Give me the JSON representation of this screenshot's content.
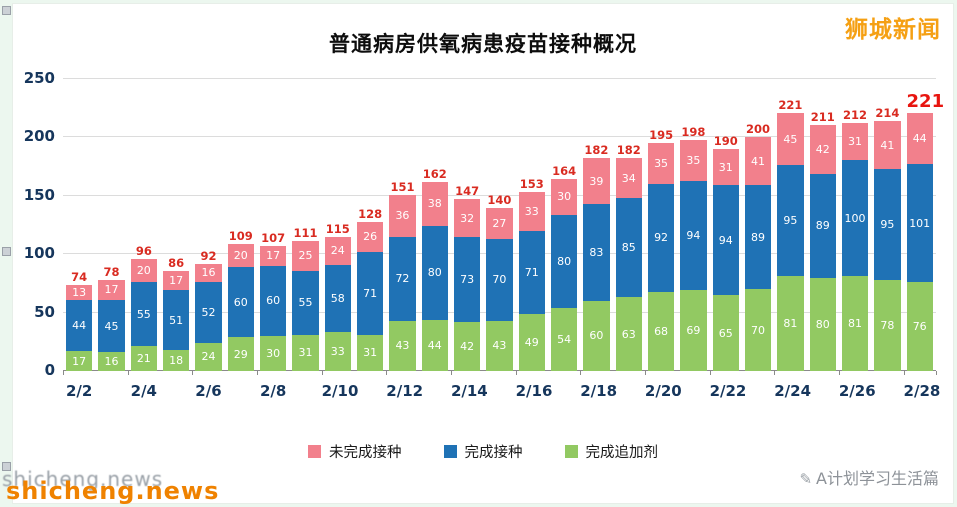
{
  "page": {
    "watermark_top_right": "狮城新闻",
    "watermark_bottom_right": "A计划学习生活篇",
    "watermark_bottom_left": "shicheng.news"
  },
  "chart_data": {
    "type": "bar",
    "stacked": true,
    "title": "普通病房供氧病患疫苗接种概况",
    "categories": [
      "2/2",
      "2/3",
      "2/4",
      "2/5",
      "2/6",
      "2/7",
      "2/8",
      "2/9",
      "2/10",
      "2/11",
      "2/12",
      "2/13",
      "2/14",
      "2/15",
      "2/16",
      "2/17",
      "2/18",
      "2/19",
      "2/20",
      "2/21",
      "2/22",
      "2/23",
      "2/24",
      "2/25",
      "2/26",
      "2/27",
      "2/28"
    ],
    "x_tick_labels": [
      "2/2",
      "2/4",
      "2/6",
      "2/8",
      "2/10",
      "2/12",
      "2/14",
      "2/16",
      "2/18",
      "2/20",
      "2/22",
      "2/24",
      "2/26",
      "2/28"
    ],
    "series": [
      {
        "name": "完成追加剂",
        "color": "#92c962",
        "values": [
          17,
          16,
          21,
          18,
          24,
          29,
          30,
          31,
          33,
          31,
          43,
          44,
          42,
          43,
          49,
          54,
          60,
          63,
          68,
          69,
          65,
          70,
          81,
          80,
          81,
          78,
          76
        ]
      },
      {
        "name": "完成接种",
        "color": "#1f72b5",
        "values": [
          44,
          45,
          55,
          51,
          52,
          60,
          60,
          55,
          58,
          71,
          72,
          80,
          73,
          70,
          71,
          80,
          83,
          85,
          92,
          94,
          94,
          89,
          95,
          89,
          100,
          95,
          101
        ]
      },
      {
        "name": "未完成接种",
        "color": "#f2808c",
        "values": [
          13,
          17,
          20,
          17,
          16,
          20,
          17,
          25,
          24,
          26,
          36,
          38,
          32,
          27,
          33,
          30,
          39,
          34,
          35,
          35,
          31,
          41,
          45,
          42,
          31,
          41,
          44
        ]
      }
    ],
    "totals": [
      74,
      78,
      96,
      86,
      92,
      109,
      107,
      111,
      115,
      128,
      151,
      162,
      147,
      140,
      153,
      164,
      182,
      182,
      195,
      198,
      190,
      200,
      221,
      211,
      212,
      214,
      221
    ],
    "ylim": [
      0,
      250
    ],
    "y_ticks": [
      0,
      50,
      100,
      150,
      200,
      250
    ],
    "grid": true,
    "legend_position": "bottom",
    "legend": [
      {
        "label": "未完成接种",
        "color": "#f2808c"
      },
      {
        "label": "完成接种",
        "color": "#1f72b5"
      },
      {
        "label": "完成追加剂",
        "color": "#92c962"
      }
    ]
  }
}
